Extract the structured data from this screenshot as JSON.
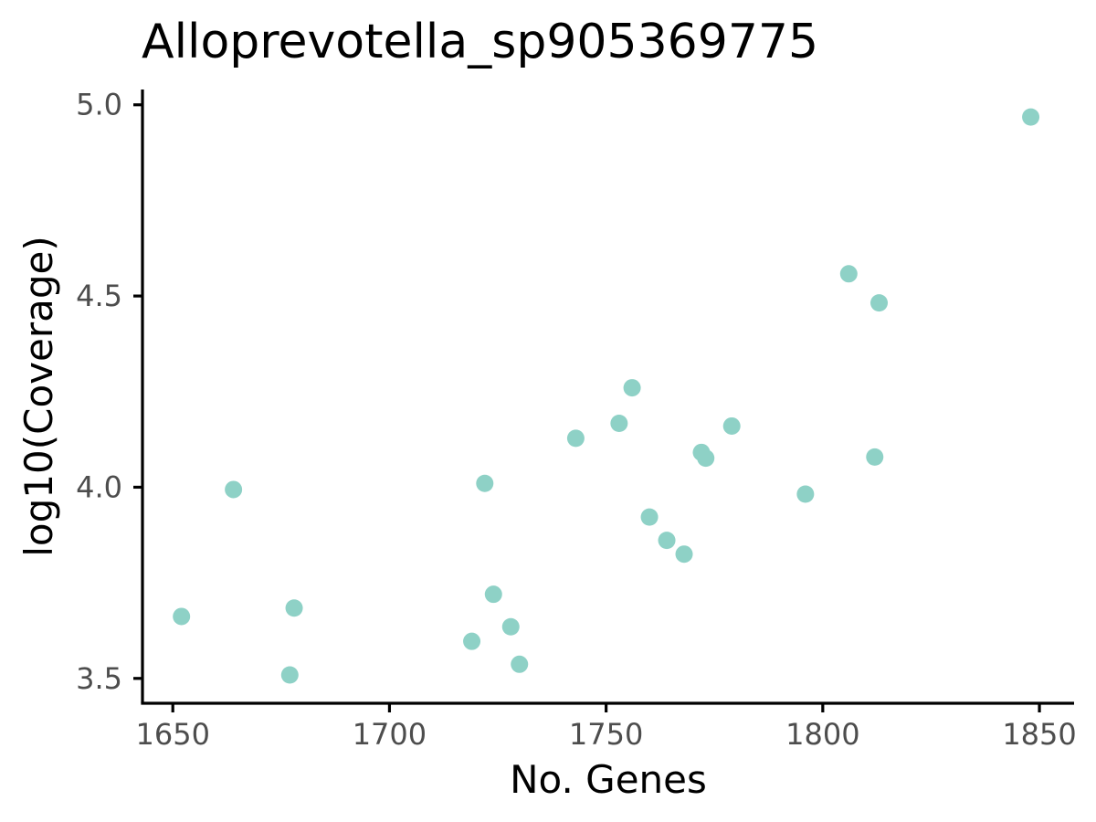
{
  "chart_data": {
    "type": "scatter",
    "title": "Alloprevotella_sp905369775",
    "xlabel": "No. Genes",
    "ylabel": "log10(Coverage)",
    "xlim": [
      1643,
      1858
    ],
    "ylim": [
      3.435,
      5.04
    ],
    "xticks": [
      1650,
      1700,
      1750,
      1800,
      1850
    ],
    "xtick_labels": [
      "1650",
      "1700",
      "1750",
      "1800",
      "1850"
    ],
    "yticks": [
      3.5,
      4.0,
      4.5,
      5.0
    ],
    "ytick_labels": [
      "3.5",
      "4.0",
      "4.5",
      "5.0"
    ],
    "grid": false,
    "legend": "none",
    "point_color": "#8ed1c6",
    "points": [
      {
        "x": 1652,
        "y": 3.662
      },
      {
        "x": 1664,
        "y": 3.994
      },
      {
        "x": 1677,
        "y": 3.509
      },
      {
        "x": 1678,
        "y": 3.684
      },
      {
        "x": 1719,
        "y": 3.597
      },
      {
        "x": 1722,
        "y": 4.01
      },
      {
        "x": 1724,
        "y": 3.72
      },
      {
        "x": 1728,
        "y": 3.635
      },
      {
        "x": 1730,
        "y": 3.537
      },
      {
        "x": 1743,
        "y": 4.128
      },
      {
        "x": 1753,
        "y": 4.167
      },
      {
        "x": 1756,
        "y": 4.26
      },
      {
        "x": 1760,
        "y": 3.922
      },
      {
        "x": 1764,
        "y": 3.861
      },
      {
        "x": 1768,
        "y": 3.825
      },
      {
        "x": 1772,
        "y": 4.091
      },
      {
        "x": 1773,
        "y": 4.076
      },
      {
        "x": 1779,
        "y": 4.16
      },
      {
        "x": 1796,
        "y": 3.982
      },
      {
        "x": 1806,
        "y": 4.558
      },
      {
        "x": 1812,
        "y": 4.079
      },
      {
        "x": 1813,
        "y": 4.482
      },
      {
        "x": 1848,
        "y": 4.968
      }
    ]
  }
}
